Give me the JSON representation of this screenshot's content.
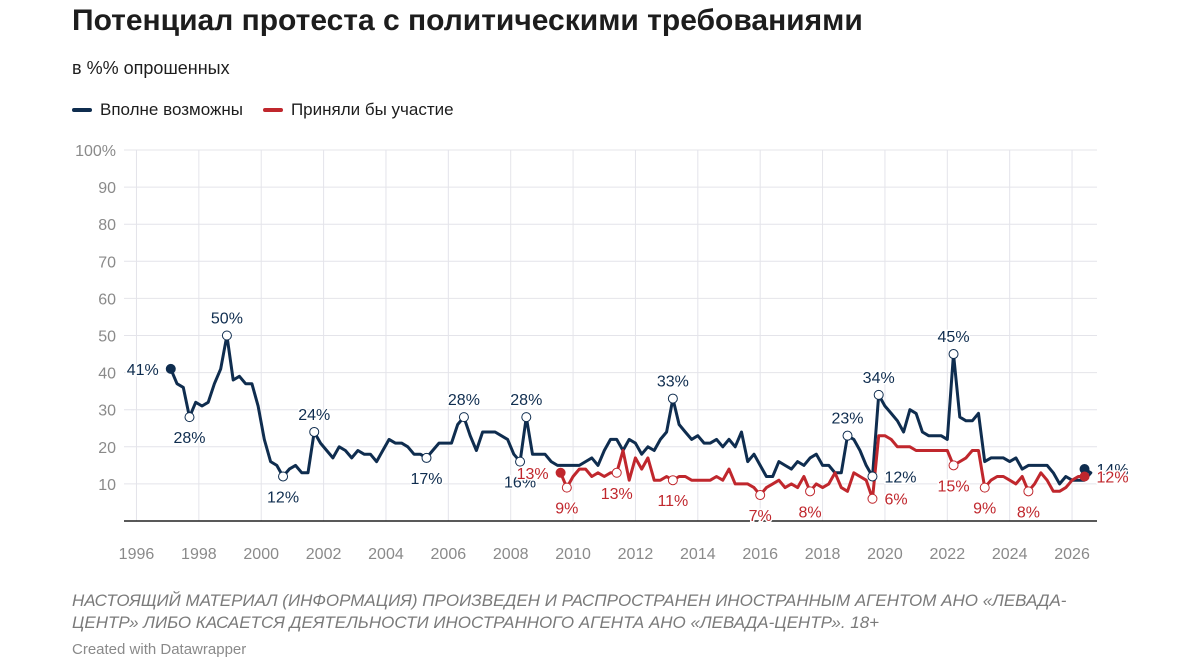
{
  "header": {
    "title": "Потенциал протеста с политическими требованиями",
    "subtitle": "в %% опрошенных"
  },
  "legend": {
    "series_1_label": "Вполне возможны",
    "series_2_label": "Приняли бы участие"
  },
  "footer": {
    "disclaimer": "НАСТОЯЩИЙ МАТЕРИАЛ (ИНФОРМАЦИЯ) ПРОИЗВЕДЕН И РАСПРОСТРАНЕН ИНОСТРАННЫМ АГЕНТОМ АНО «ЛЕВАДА-ЦЕНТР» ЛИБО КАСАЕТСЯ ДЕЯТЕЛЬНОСТИ ИНОСТРАННОГО АГЕНТА АНО «ЛЕВАДА-ЦЕНТР». 18+",
    "credit": "Created with Datawrapper"
  },
  "colors": {
    "series_1": "#0f2d4f",
    "series_2": "#c0272d",
    "grid": "#e4e4ea",
    "axis_text": "#8a8a8a"
  },
  "chart_data": {
    "type": "line",
    "title": "Потенциал протеста с политическими требованиями",
    "subtitle": "в %% опрошенных",
    "xlabel": "",
    "ylabel": "",
    "xlim": [
      1995.6,
      2026.8
    ],
    "ylim": [
      0,
      100
    ],
    "x_ticks": [
      1996,
      1998,
      2000,
      2002,
      2004,
      2006,
      2008,
      2010,
      2012,
      2014,
      2016,
      2018,
      2020,
      2022,
      2024,
      2026
    ],
    "y_ticks": [
      10,
      20,
      30,
      40,
      50,
      60,
      70,
      80,
      90,
      100
    ],
    "y_tick_labels": [
      "10",
      "20",
      "30",
      "40",
      "50",
      "60",
      "70",
      "80",
      "90",
      "100%"
    ],
    "grid": true,
    "legend_position": "top-left",
    "series": [
      {
        "name": "Вполне возможны",
        "color": "#0f2d4f",
        "points": [
          [
            1997.1,
            41
          ],
          [
            1997.3,
            37
          ],
          [
            1997.5,
            36
          ],
          [
            1997.7,
            28
          ],
          [
            1997.9,
            32
          ],
          [
            1998.1,
            31
          ],
          [
            1998.3,
            32
          ],
          [
            1998.5,
            37
          ],
          [
            1998.7,
            41
          ],
          [
            1998.9,
            50
          ],
          [
            1999.1,
            38
          ],
          [
            1999.3,
            39
          ],
          [
            1999.5,
            37
          ],
          [
            1999.7,
            37
          ],
          [
            1999.9,
            31
          ],
          [
            2000.1,
            22
          ],
          [
            2000.3,
            16
          ],
          [
            2000.5,
            15
          ],
          [
            2000.7,
            12
          ],
          [
            2000.9,
            14
          ],
          [
            2001.1,
            15
          ],
          [
            2001.3,
            13
          ],
          [
            2001.5,
            13
          ],
          [
            2001.7,
            24
          ],
          [
            2001.9,
            21
          ],
          [
            2002.1,
            19
          ],
          [
            2002.3,
            17
          ],
          [
            2002.5,
            20
          ],
          [
            2002.7,
            19
          ],
          [
            2002.9,
            17
          ],
          [
            2003.1,
            19
          ],
          [
            2003.3,
            18
          ],
          [
            2003.5,
            18
          ],
          [
            2003.7,
            16
          ],
          [
            2003.9,
            19
          ],
          [
            2004.1,
            22
          ],
          [
            2004.3,
            21
          ],
          [
            2004.5,
            21
          ],
          [
            2004.7,
            20
          ],
          [
            2004.9,
            18
          ],
          [
            2005.1,
            18
          ],
          [
            2005.3,
            17
          ],
          [
            2005.5,
            19
          ],
          [
            2005.7,
            21
          ],
          [
            2005.9,
            21
          ],
          [
            2006.1,
            21
          ],
          [
            2006.3,
            26
          ],
          [
            2006.5,
            28
          ],
          [
            2006.7,
            23
          ],
          [
            2006.9,
            19
          ],
          [
            2007.1,
            24
          ],
          [
            2007.3,
            24
          ],
          [
            2007.5,
            24
          ],
          [
            2007.7,
            23
          ],
          [
            2007.9,
            22
          ],
          [
            2008.1,
            18
          ],
          [
            2008.3,
            16
          ],
          [
            2008.5,
            28
          ],
          [
            2008.7,
            18
          ],
          [
            2008.9,
            18
          ],
          [
            2009.1,
            18
          ],
          [
            2009.3,
            16
          ],
          [
            2009.5,
            15
          ],
          [
            2010.2,
            15
          ],
          [
            2010.4,
            16
          ],
          [
            2010.6,
            17
          ],
          [
            2010.8,
            15
          ],
          [
            2011.0,
            19
          ],
          [
            2011.2,
            22
          ],
          [
            2011.4,
            22
          ],
          [
            2011.6,
            19
          ],
          [
            2011.8,
            22
          ],
          [
            2012.0,
            21
          ],
          [
            2012.2,
            18
          ],
          [
            2012.4,
            20
          ],
          [
            2012.6,
            19
          ],
          [
            2012.8,
            22
          ],
          [
            2013.0,
            24
          ],
          [
            2013.2,
            33
          ],
          [
            2013.4,
            26
          ],
          [
            2013.6,
            24
          ],
          [
            2013.8,
            22
          ],
          [
            2014.0,
            23
          ],
          [
            2014.2,
            21
          ],
          [
            2014.4,
            21
          ],
          [
            2014.6,
            22
          ],
          [
            2014.8,
            20
          ],
          [
            2015.0,
            22
          ],
          [
            2015.2,
            20
          ],
          [
            2015.4,
            24
          ],
          [
            2015.6,
            16
          ],
          [
            2015.8,
            18
          ],
          [
            2016.0,
            15
          ],
          [
            2016.2,
            12
          ],
          [
            2016.4,
            12
          ],
          [
            2016.6,
            16
          ],
          [
            2016.8,
            15
          ],
          [
            2017.0,
            14
          ],
          [
            2017.2,
            16
          ],
          [
            2017.4,
            15
          ],
          [
            2017.6,
            17
          ],
          [
            2017.8,
            18
          ],
          [
            2018.0,
            15
          ],
          [
            2018.2,
            15
          ],
          [
            2018.4,
            13
          ],
          [
            2018.6,
            13
          ],
          [
            2018.8,
            23
          ],
          [
            2019.0,
            22
          ],
          [
            2019.2,
            19
          ],
          [
            2019.4,
            15
          ],
          [
            2019.6,
            12
          ],
          [
            2019.8,
            34
          ],
          [
            2020.0,
            31
          ],
          [
            2020.2,
            29
          ],
          [
            2020.4,
            27
          ],
          [
            2020.6,
            24
          ],
          [
            2020.8,
            30
          ],
          [
            2021.0,
            29
          ],
          [
            2021.2,
            24
          ],
          [
            2021.4,
            23
          ],
          [
            2021.6,
            23
          ],
          [
            2021.8,
            23
          ],
          [
            2022.0,
            22
          ],
          [
            2022.2,
            45
          ],
          [
            2022.4,
            28
          ],
          [
            2022.6,
            27
          ],
          [
            2022.8,
            27
          ],
          [
            2023.0,
            29
          ],
          [
            2023.2,
            16
          ],
          [
            2023.4,
            17
          ],
          [
            2023.6,
            17
          ],
          [
            2023.8,
            17
          ],
          [
            2024.0,
            16
          ],
          [
            2024.2,
            17
          ],
          [
            2024.4,
            14
          ],
          [
            2024.6,
            15
          ],
          [
            2024.8,
            15
          ],
          [
            2025.0,
            15
          ],
          [
            2025.2,
            15
          ],
          [
            2025.4,
            13
          ],
          [
            2025.6,
            10
          ],
          [
            2025.8,
            12
          ],
          [
            2026.0,
            11
          ],
          [
            2026.2,
            11
          ],
          [
            2026.4,
            11
          ],
          [
            2026.6,
            13
          ],
          [
            2026.4,
            14
          ]
        ],
        "annotations": [
          {
            "x": 1997.1,
            "y": 41,
            "label": "41%",
            "pos": "left"
          },
          {
            "x": 1997.7,
            "y": 28,
            "label": "28%",
            "pos": "below"
          },
          {
            "x": 1998.9,
            "y": 50,
            "label": "50%",
            "pos": "above"
          },
          {
            "x": 2000.7,
            "y": 12,
            "label": "12%",
            "pos": "below"
          },
          {
            "x": 2001.7,
            "y": 24,
            "label": "24%",
            "pos": "above"
          },
          {
            "x": 2005.3,
            "y": 17,
            "label": "17%",
            "pos": "below"
          },
          {
            "x": 2006.5,
            "y": 28,
            "label": "28%",
            "pos": "above"
          },
          {
            "x": 2008.3,
            "y": 16,
            "label": "16%",
            "pos": "below"
          },
          {
            "x": 2008.5,
            "y": 28,
            "label": "28%",
            "pos": "above"
          },
          {
            "x": 2013.2,
            "y": 33,
            "label": "33%",
            "pos": "above"
          },
          {
            "x": 2018.8,
            "y": 23,
            "label": "23%",
            "pos": "above"
          },
          {
            "x": 2019.6,
            "y": 12,
            "label": "12%",
            "pos": "right"
          },
          {
            "x": 2019.8,
            "y": 34,
            "label": "34%",
            "pos": "above"
          },
          {
            "x": 2022.2,
            "y": 45,
            "label": "45%",
            "pos": "above"
          },
          {
            "x": 2026.4,
            "y": 14,
            "label": "14%",
            "pos": "end"
          }
        ]
      },
      {
        "name": "Приняли бы участие",
        "color": "#c0272d",
        "points": [
          [
            2009.6,
            13
          ],
          [
            2009.8,
            9
          ],
          [
            2010.0,
            12
          ],
          [
            2010.2,
            14
          ],
          [
            2010.4,
            14
          ],
          [
            2010.6,
            12
          ],
          [
            2010.8,
            13
          ],
          [
            2011.0,
            12
          ],
          [
            2011.2,
            13
          ],
          [
            2011.4,
            13
          ],
          [
            2011.6,
            19
          ],
          [
            2011.8,
            11
          ],
          [
            2012.0,
            17
          ],
          [
            2012.2,
            14
          ],
          [
            2012.4,
            17
          ],
          [
            2012.6,
            11
          ],
          [
            2012.8,
            11
          ],
          [
            2013.0,
            12
          ],
          [
            2013.2,
            11
          ],
          [
            2013.4,
            12
          ],
          [
            2013.6,
            12
          ],
          [
            2013.8,
            11
          ],
          [
            2014.0,
            11
          ],
          [
            2014.2,
            11
          ],
          [
            2014.4,
            11
          ],
          [
            2014.6,
            12
          ],
          [
            2014.8,
            11
          ],
          [
            2015.0,
            14
          ],
          [
            2015.2,
            10
          ],
          [
            2015.4,
            10
          ],
          [
            2015.6,
            10
          ],
          [
            2015.8,
            9
          ],
          [
            2016.0,
            7
          ],
          [
            2016.2,
            9
          ],
          [
            2016.4,
            10
          ],
          [
            2016.6,
            11
          ],
          [
            2016.8,
            9
          ],
          [
            2017.0,
            10
          ],
          [
            2017.2,
            9
          ],
          [
            2017.4,
            12
          ],
          [
            2017.6,
            8
          ],
          [
            2017.8,
            10
          ],
          [
            2018.0,
            9
          ],
          [
            2018.2,
            10
          ],
          [
            2018.4,
            13
          ],
          [
            2018.6,
            9
          ],
          [
            2018.8,
            8
          ],
          [
            2019.0,
            13
          ],
          [
            2019.2,
            12
          ],
          [
            2019.4,
            11
          ],
          [
            2019.6,
            6
          ],
          [
            2019.8,
            23
          ],
          [
            2020.0,
            23
          ],
          [
            2020.2,
            22
          ],
          [
            2020.4,
            20
          ],
          [
            2020.6,
            20
          ],
          [
            2020.8,
            20
          ],
          [
            2021.0,
            19
          ],
          [
            2021.2,
            19
          ],
          [
            2021.4,
            19
          ],
          [
            2021.6,
            19
          ],
          [
            2021.8,
            19
          ],
          [
            2022.0,
            19
          ],
          [
            2022.2,
            15
          ],
          [
            2022.4,
            16
          ],
          [
            2022.6,
            17
          ],
          [
            2022.8,
            19
          ],
          [
            2023.0,
            19
          ],
          [
            2023.2,
            9
          ],
          [
            2023.4,
            11
          ],
          [
            2023.6,
            12
          ],
          [
            2023.8,
            12
          ],
          [
            2024.0,
            11
          ],
          [
            2024.2,
            10
          ],
          [
            2024.4,
            12
          ],
          [
            2024.6,
            8
          ],
          [
            2024.8,
            10
          ],
          [
            2025.0,
            13
          ],
          [
            2025.2,
            11
          ],
          [
            2025.4,
            8
          ],
          [
            2025.6,
            8
          ],
          [
            2025.8,
            9
          ],
          [
            2026.0,
            11
          ],
          [
            2026.2,
            12
          ],
          [
            2026.4,
            12
          ]
        ],
        "annotations": [
          {
            "x": 2009.6,
            "y": 13,
            "label": "13%",
            "pos": "left"
          },
          {
            "x": 2009.8,
            "y": 9,
            "label": "9%",
            "pos": "below"
          },
          {
            "x": 2011.4,
            "y": 13,
            "label": "13%",
            "pos": "below"
          },
          {
            "x": 2013.2,
            "y": 11,
            "label": "11%",
            "pos": "below"
          },
          {
            "x": 2016.0,
            "y": 7,
            "label": "7%",
            "pos": "below"
          },
          {
            "x": 2017.6,
            "y": 8,
            "label": "8%",
            "pos": "below"
          },
          {
            "x": 2019.6,
            "y": 6,
            "label": "6%",
            "pos": "right"
          },
          {
            "x": 2022.2,
            "y": 15,
            "label": "15%",
            "pos": "below"
          },
          {
            "x": 2023.2,
            "y": 9,
            "label": "9%",
            "pos": "below"
          },
          {
            "x": 2024.6,
            "y": 8,
            "label": "8%",
            "pos": "below"
          },
          {
            "x": 2026.4,
            "y": 12,
            "label": "12%",
            "pos": "end"
          }
        ]
      }
    ]
  }
}
